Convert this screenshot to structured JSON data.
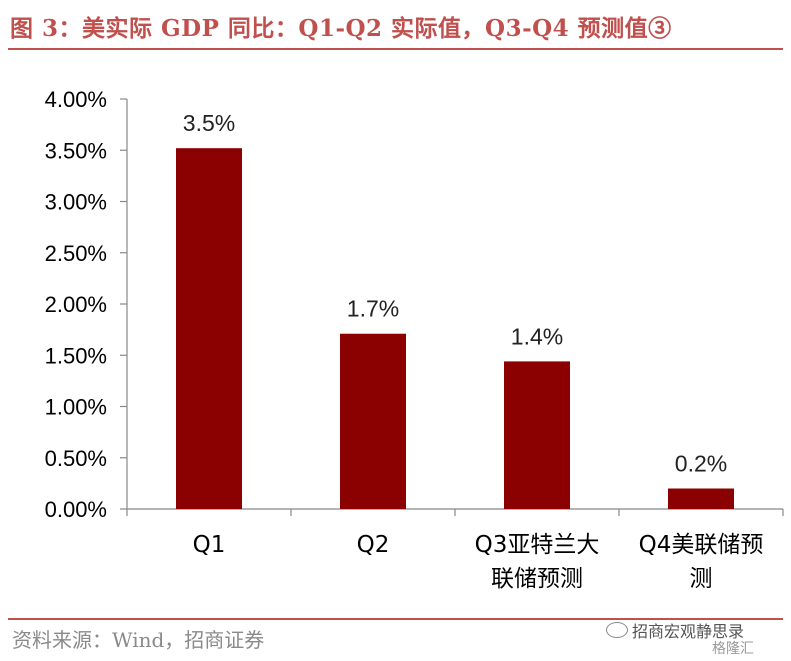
{
  "title": "图 3：美实际 GDP 同比：Q1-Q2 实际值，Q3-Q4 预测值③",
  "source": "资料来源：Wind，招商证券",
  "watermark": "招商宏观静思录",
  "logo_text": "格隆汇",
  "colors": {
    "bar": "#8b0000",
    "accent": "#c0504d",
    "axis": "#888888"
  },
  "chart_data": {
    "type": "bar",
    "categories": [
      "Q1",
      "Q2",
      "Q3亚特兰大联储预测",
      "Q4美联储预测"
    ],
    "category_lines": [
      [
        "Q1"
      ],
      [
        "Q2"
      ],
      [
        "Q3亚特兰大",
        "联储预测"
      ],
      [
        "Q4美联储预",
        "测"
      ]
    ],
    "values": [
      3.52,
      1.71,
      1.44,
      0.2
    ],
    "data_labels": [
      "3.5%",
      "1.7%",
      "1.4%",
      "0.2%"
    ],
    "yticks": [
      "0.00%",
      "0.50%",
      "1.00%",
      "1.50%",
      "2.00%",
      "2.50%",
      "3.00%",
      "3.50%",
      "4.00%"
    ],
    "ylim": [
      0,
      4
    ],
    "grid": false,
    "legend": "none"
  }
}
